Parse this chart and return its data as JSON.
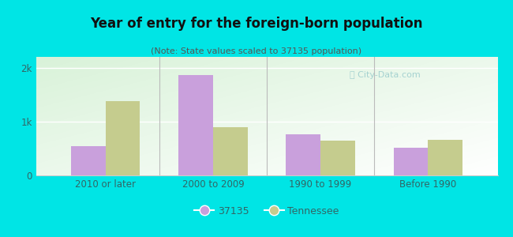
{
  "title": "Year of entry for the foreign-born population",
  "subtitle": "(Note: State values scaled to 37135 population)",
  "categories": [
    "2010 or later",
    "2000 to 2009",
    "1990 to 1999",
    "Before 1990"
  ],
  "values_37135": [
    550,
    1870,
    760,
    520
  ],
  "values_tennessee": [
    1380,
    890,
    640,
    660
  ],
  "color_37135": "#c9a0dc",
  "color_tennessee": "#c5cc8e",
  "ylim": [
    0,
    2200
  ],
  "yticks": [
    0,
    1000,
    2000
  ],
  "ytick_labels": [
    "0",
    "1k",
    "2k"
  ],
  "outer_bg": "#00e5e5",
  "legend_label_1": "37135",
  "legend_label_2": "Tennessee",
  "bar_width": 0.32
}
